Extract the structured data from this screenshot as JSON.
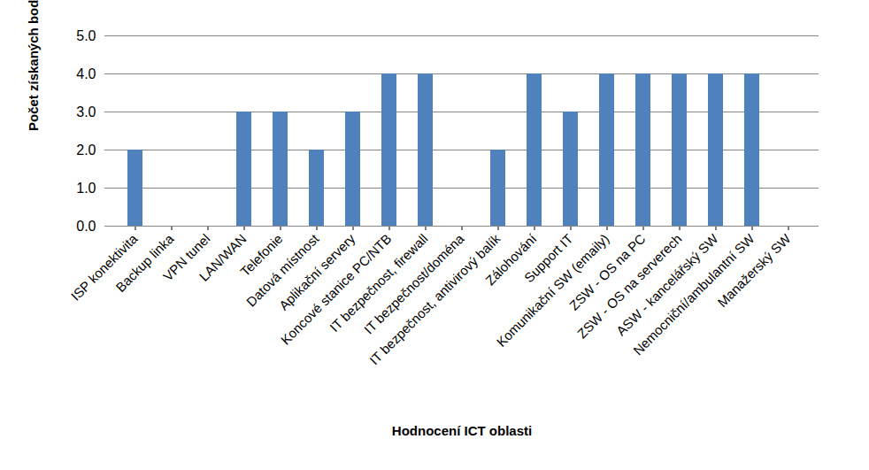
{
  "chart_data": {
    "type": "bar",
    "xlabel": "Hodnocení ICT oblasti",
    "ylabel": "Počet získaných bodů",
    "categories": [
      "ISP konektivita",
      "Backup linka",
      "VPN tunel",
      "LAN/WAN",
      "Telefonie",
      "Datová místnost",
      "Aplikační servery",
      "Koncové stanice PC/NTB",
      "IT bezpečnost, firewall",
      "IT bezpečnost/doména",
      "IT bezpečnost, antivirový balík",
      "Zálohování",
      "Support IT",
      "Komunikační SW (emaily)",
      "ZSW - OS na PC",
      "ZSW - OS na serverech",
      "ASW - kancelářský SW",
      "Nemocniční/ambulantní SW",
      "Manažerský SW"
    ],
    "values": [
      2,
      0,
      0,
      3,
      3,
      2,
      3,
      4,
      4,
      0,
      2,
      4,
      3,
      4,
      4,
      4,
      4,
      4,
      0
    ],
    "color": "#4f81bd",
    "ylim": [
      0,
      5
    ],
    "yticks": [
      0,
      1,
      2,
      3,
      4,
      5
    ],
    "grid": true
  }
}
